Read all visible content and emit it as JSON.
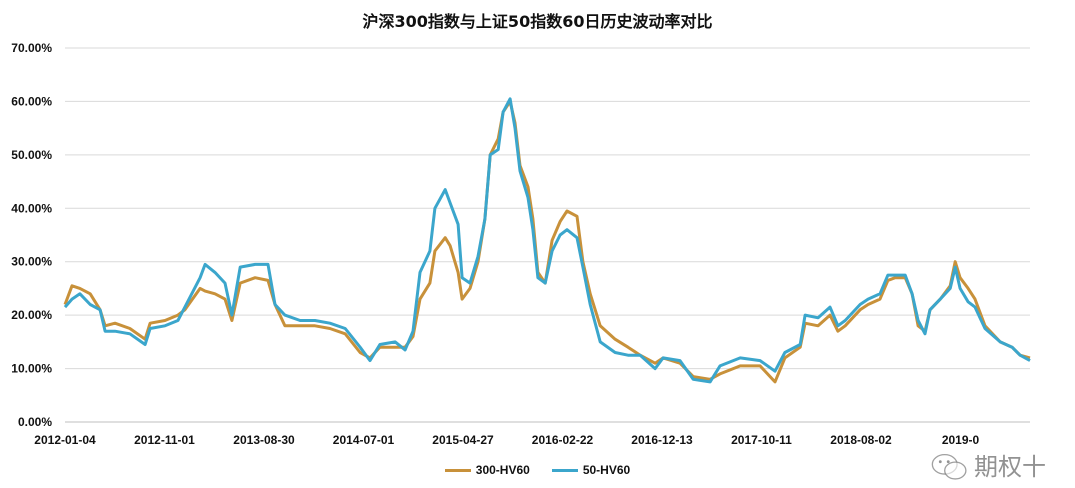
{
  "chart_data": {
    "type": "line",
    "title": "沪深300指数与上证50指数60日历史波动率对比",
    "xlabel": "",
    "ylabel": "",
    "ylim": [
      0,
      0.7
    ],
    "yticks": [
      "0.00%",
      "10.00%",
      "20.00%",
      "30.00%",
      "40.00%",
      "50.00%",
      "60.00%",
      "70.00%"
    ],
    "xticks": [
      "2012-01-04",
      "2012-11-01",
      "2013-08-30",
      "2014-07-01",
      "2015-04-27",
      "2016-02-22",
      "2016-12-13",
      "2017-10-11",
      "2018-08-02",
      "2019-0"
    ],
    "xrange": [
      "2012-01-04",
      "2019-12-27"
    ],
    "grid": "horizontal",
    "legend": "bottom",
    "x": [
      "2012-01-04",
      "2012-01-25",
      "2012-02-18",
      "2012-03-20",
      "2012-04-19",
      "2012-05-04",
      "2012-06-03",
      "2012-07-18",
      "2012-09-02",
      "2012-09-17",
      "2012-11-01",
      "2012-12-10",
      "2012-12-31",
      "2013-02-15",
      "2013-03-02",
      "2013-04-01",
      "2013-05-01",
      "2013-05-22",
      "2013-06-16",
      "2013-07-31",
      "2013-09-08",
      "2013-09-29",
      "2013-10-29",
      "2013-12-14",
      "2014-01-28",
      "2014-03-14",
      "2014-04-29",
      "2014-06-13",
      "2014-07-13",
      "2014-08-12",
      "2014-09-27",
      "2014-10-27",
      "2014-11-20",
      "2014-12-11",
      "2015-01-10",
      "2015-01-25",
      "2015-02-25",
      "2015-03-12",
      "2015-04-05",
      "2015-04-17",
      "2015-05-11",
      "2015-06-04",
      "2015-06-25",
      "2015-07-11",
      "2015-08-04",
      "2015-08-19",
      "2015-09-09",
      "2015-09-24",
      "2015-10-09",
      "2015-11-02",
      "2015-11-17",
      "2015-12-02",
      "2015-12-24",
      "2016-01-14",
      "2016-02-07",
      "2016-02-28",
      "2016-03-29",
      "2016-04-16",
      "2016-05-08",
      "2016-06-07",
      "2016-07-22",
      "2016-08-30",
      "2016-10-06",
      "2016-11-20",
      "2016-12-14",
      "2017-02-03",
      "2017-03-15",
      "2017-05-05",
      "2017-06-04",
      "2017-08-04",
      "2017-10-03",
      "2017-11-17",
      "2017-12-17",
      "2018-02-01",
      "2018-02-16",
      "2018-03-27",
      "2018-05-02",
      "2018-05-26",
      "2018-06-17",
      "2018-08-01",
      "2018-08-25",
      "2018-09-30",
      "2018-10-24",
      "2018-11-15",
      "2018-12-15",
      "2019-01-05",
      "2019-01-23",
      "2019-02-13",
      "2019-02-28",
      "2019-03-31",
      "2019-04-30",
      "2019-05-15",
      "2019-05-30",
      "2019-06-23",
      "2019-07-14",
      "2019-08-13",
      "2019-09-28",
      "2019-11-03",
      "2019-11-27",
      "2019-12-27"
    ],
    "series": [
      {
        "name": "300-HV60",
        "color": "#C8913A",
        "values": [
          0.22,
          0.255,
          0.25,
          0.24,
          0.21,
          0.18,
          0.185,
          0.175,
          0.155,
          0.185,
          0.19,
          0.2,
          0.21,
          0.25,
          0.245,
          0.24,
          0.23,
          0.19,
          0.26,
          0.27,
          0.265,
          0.22,
          0.18,
          0.18,
          0.18,
          0.175,
          0.165,
          0.13,
          0.12,
          0.14,
          0.14,
          0.14,
          0.16,
          0.23,
          0.26,
          0.32,
          0.345,
          0.33,
          0.28,
          0.23,
          0.25,
          0.3,
          0.38,
          0.5,
          0.53,
          0.58,
          0.6,
          0.56,
          0.48,
          0.44,
          0.38,
          0.28,
          0.26,
          0.34,
          0.375,
          0.395,
          0.385,
          0.3,
          0.24,
          0.18,
          0.155,
          0.14,
          0.125,
          0.11,
          0.12,
          0.11,
          0.085,
          0.08,
          0.09,
          0.105,
          0.105,
          0.075,
          0.12,
          0.14,
          0.185,
          0.18,
          0.2,
          0.17,
          0.18,
          0.21,
          0.22,
          0.23,
          0.265,
          0.27,
          0.27,
          0.24,
          0.18,
          0.17,
          0.21,
          0.23,
          0.255,
          0.3,
          0.27,
          0.25,
          0.23,
          0.18,
          0.15,
          0.14,
          0.125,
          0.12
        ]
      },
      {
        "name": "50-HV60",
        "color": "#3BA6CC",
        "values": [
          0.215,
          0.23,
          0.24,
          0.22,
          0.21,
          0.17,
          0.17,
          0.165,
          0.145,
          0.175,
          0.18,
          0.19,
          0.215,
          0.27,
          0.295,
          0.28,
          0.26,
          0.2,
          0.29,
          0.295,
          0.295,
          0.22,
          0.2,
          0.19,
          0.19,
          0.185,
          0.175,
          0.14,
          0.115,
          0.145,
          0.15,
          0.135,
          0.17,
          0.28,
          0.32,
          0.4,
          0.435,
          0.41,
          0.37,
          0.27,
          0.26,
          0.31,
          0.38,
          0.5,
          0.51,
          0.58,
          0.605,
          0.55,
          0.47,
          0.42,
          0.36,
          0.27,
          0.26,
          0.32,
          0.35,
          0.36,
          0.345,
          0.29,
          0.22,
          0.15,
          0.13,
          0.125,
          0.125,
          0.1,
          0.12,
          0.115,
          0.08,
          0.075,
          0.105,
          0.12,
          0.115,
          0.095,
          0.13,
          0.145,
          0.2,
          0.195,
          0.215,
          0.18,
          0.19,
          0.22,
          0.23,
          0.24,
          0.275,
          0.275,
          0.275,
          0.24,
          0.19,
          0.165,
          0.21,
          0.23,
          0.25,
          0.29,
          0.25,
          0.225,
          0.215,
          0.175,
          0.15,
          0.14,
          0.125,
          0.115
        ]
      }
    ]
  },
  "watermark": {
    "icon": "wechat-icon",
    "text": "期权十"
  }
}
